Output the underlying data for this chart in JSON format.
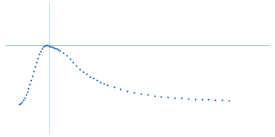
{
  "title": "",
  "background_color": "#ffffff",
  "dot_color": "#2366b0",
  "dot_size": 3,
  "line_color": "#a8c8e8",
  "line_width": 0.7,
  "x_points": [
    0.01,
    0.012,
    0.014,
    0.016,
    0.018,
    0.02,
    0.022,
    0.024,
    0.026,
    0.028,
    0.03,
    0.032,
    0.034,
    0.036,
    0.038,
    0.04,
    0.042,
    0.044,
    0.046,
    0.048,
    0.05,
    0.052,
    0.054,
    0.056,
    0.058,
    0.06,
    0.062,
    0.064,
    0.066,
    0.068,
    0.07,
    0.075,
    0.08,
    0.085,
    0.09,
    0.095,
    0.1,
    0.105,
    0.11,
    0.115,
    0.12,
    0.125,
    0.13,
    0.135,
    0.14,
    0.15,
    0.16,
    0.17,
    0.18,
    0.19,
    0.2,
    0.21,
    0.22,
    0.23,
    0.24,
    0.25,
    0.26,
    0.27,
    0.28,
    0.29,
    0.3,
    0.31,
    0.32
  ],
  "y_points": [
    0.0004,
    0.0006,
    0.0009,
    0.0013,
    0.0018,
    0.0024,
    0.0031,
    0.0038,
    0.0046,
    0.0055,
    0.0064,
    0.0074,
    0.0084,
    0.0093,
    0.0102,
    0.011,
    0.0117,
    0.0122,
    0.0126,
    0.0128,
    0.0129,
    0.0129,
    0.0128,
    0.0127,
    0.0126,
    0.0125,
    0.0124,
    0.0123,
    0.0122,
    0.012,
    0.0118,
    0.0113,
    0.0107,
    0.01,
    0.0093,
    0.0086,
    0.0079,
    0.0073,
    0.0068,
    0.0063,
    0.0059,
    0.0055,
    0.0051,
    0.0048,
    0.0045,
    0.004,
    0.0036,
    0.0032,
    0.0029,
    0.0026,
    0.0024,
    0.0022,
    0.002,
    0.0019,
    0.0018,
    0.0017,
    0.0016,
    0.0015,
    0.0014,
    0.0014,
    0.0013,
    0.0013,
    0.0012
  ],
  "hline_y": 0.0129,
  "vline_x": 0.054,
  "xlim": [
    -0.01,
    0.38
  ],
  "ylim": [
    -0.006,
    0.022
  ],
  "figsize": [
    4.0,
    2.0
  ],
  "dpi": 100
}
